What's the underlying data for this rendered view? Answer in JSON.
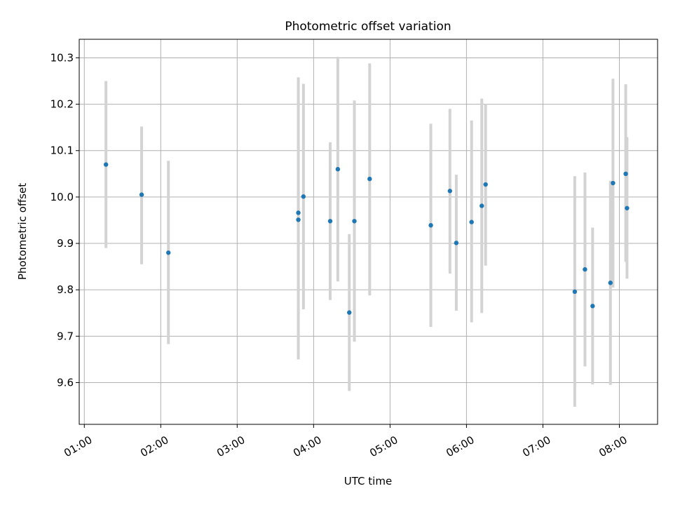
{
  "chart_data": {
    "type": "scatter",
    "title": "Photometric offset variation",
    "xlabel": "UTC time",
    "ylabel": "Photometric offset",
    "x_unit": "UTC time (HH:MM)",
    "xlim": [
      "00:56",
      "08:30"
    ],
    "ylim": [
      9.51,
      10.34
    ],
    "x_ticks": [
      "01:00",
      "02:00",
      "03:00",
      "04:00",
      "05:00",
      "06:00",
      "07:00",
      "08:00"
    ],
    "y_ticks": [
      9.6,
      9.7,
      9.8,
      9.9,
      10.0,
      10.1,
      10.2,
      10.3
    ],
    "y_tick_labels": [
      "9.6",
      "9.7",
      "9.8",
      "9.9",
      "10.0",
      "10.1",
      "10.2",
      "10.3"
    ],
    "grid": true,
    "point_color": "#1f77b4",
    "errorbar_color": "#d3d3d3",
    "points": [
      {
        "x": "01:17",
        "y": 10.07,
        "ylow": 9.89,
        "yhigh": 10.25
      },
      {
        "x": "01:45",
        "y": 10.005,
        "ylow": 9.855,
        "yhigh": 10.152
      },
      {
        "x": "02:06",
        "y": 9.88,
        "ylow": 9.683,
        "yhigh": 10.078
      },
      {
        "x": "03:48",
        "y": 9.966,
        "ylow": 9.65,
        "yhigh": 10.258
      },
      {
        "x": "03:48",
        "y": 9.951,
        "ylow": 9.65,
        "yhigh": 10.25
      },
      {
        "x": "03:52",
        "y": 10.001,
        "ylow": 9.758,
        "yhigh": 10.244
      },
      {
        "x": "04:13",
        "y": 9.948,
        "ylow": 9.778,
        "yhigh": 10.118
      },
      {
        "x": "04:19",
        "y": 10.06,
        "ylow": 9.818,
        "yhigh": 10.302
      },
      {
        "x": "04:28",
        "y": 9.751,
        "ylow": 9.582,
        "yhigh": 9.92
      },
      {
        "x": "04:32",
        "y": 9.948,
        "ylow": 9.688,
        "yhigh": 10.208
      },
      {
        "x": "04:44",
        "y": 10.039,
        "ylow": 9.788,
        "yhigh": 10.288
      },
      {
        "x": "05:32",
        "y": 9.939,
        "ylow": 9.72,
        "yhigh": 10.158
      },
      {
        "x": "05:47",
        "y": 10.013,
        "ylow": 9.835,
        "yhigh": 10.19
      },
      {
        "x": "05:52",
        "y": 9.901,
        "ylow": 9.755,
        "yhigh": 10.048
      },
      {
        "x": "06:04",
        "y": 9.946,
        "ylow": 9.73,
        "yhigh": 10.165
      },
      {
        "x": "06:12",
        "y": 9.981,
        "ylow": 9.75,
        "yhigh": 10.212
      },
      {
        "x": "06:15",
        "y": 10.027,
        "ylow": 9.852,
        "yhigh": 10.2
      },
      {
        "x": "07:25",
        "y": 9.796,
        "ylow": 9.548,
        "yhigh": 10.045
      },
      {
        "x": "07:33",
        "y": 9.844,
        "ylow": 9.635,
        "yhigh": 10.053
      },
      {
        "x": "07:39",
        "y": 9.765,
        "ylow": 9.596,
        "yhigh": 9.934
      },
      {
        "x": "07:53",
        "y": 9.815,
        "ylow": 9.595,
        "yhigh": 10.035
      },
      {
        "x": "07:55",
        "y": 10.03,
        "ylow": 9.805,
        "yhigh": 10.255
      },
      {
        "x": "08:05",
        "y": 10.05,
        "ylow": 9.86,
        "yhigh": 10.243
      },
      {
        "x": "08:06",
        "y": 9.976,
        "ylow": 9.824,
        "yhigh": 10.129
      }
    ]
  }
}
